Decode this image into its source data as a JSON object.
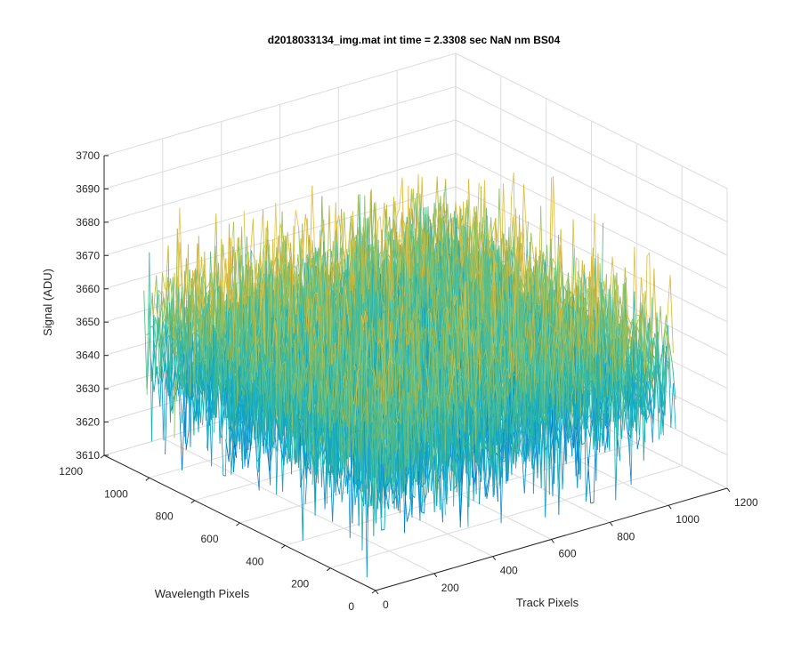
{
  "chart_data": {
    "type": "surface",
    "title": "d2018033134_img.mat int time = 2.3308 sec  NaN nm BS04",
    "xlabel": "Track Pixels",
    "ylabel": "Wavelength Pixels",
    "zlabel": "Signal (ADU)",
    "xlim": [
      0,
      1200
    ],
    "ylim": [
      0,
      1200
    ],
    "zlim": [
      3610,
      3700
    ],
    "x_ticks": [
      0,
      200,
      400,
      600,
      800,
      1000,
      1200
    ],
    "y_ticks": [
      0,
      200,
      400,
      600,
      800,
      1000,
      1200
    ],
    "z_ticks": [
      3610,
      3620,
      3630,
      3640,
      3650,
      3660,
      3670,
      3680,
      3690,
      3700
    ],
    "x_tick_labels": [
      "0",
      "200",
      "400",
      "600",
      "800",
      "1000",
      "1200"
    ],
    "y_tick_labels": [
      "0",
      "200",
      "400",
      "600",
      "800",
      "1000",
      "1200"
    ],
    "z_tick_labels": [
      "3610",
      "3620",
      "3630",
      "3640",
      "3650",
      "3660",
      "3670",
      "3680",
      "3690",
      "3700"
    ],
    "data_extent": {
      "x": [
        0,
        1024
      ],
      "y": [
        0,
        1024
      ]
    },
    "signal_level": {
      "mean": 3650,
      "min": 3612,
      "max": 3697
    },
    "grid": true,
    "colormap": [
      "#0072bd",
      "#1390d0",
      "#0fa8c6",
      "#2cb5a8",
      "#59bd8a",
      "#98bf5c",
      "#d9b93a",
      "#e8c24a"
    ],
    "colors": {
      "axes": "#262626",
      "grid": "#dcdcdc",
      "background": "#ffffff"
    }
  }
}
